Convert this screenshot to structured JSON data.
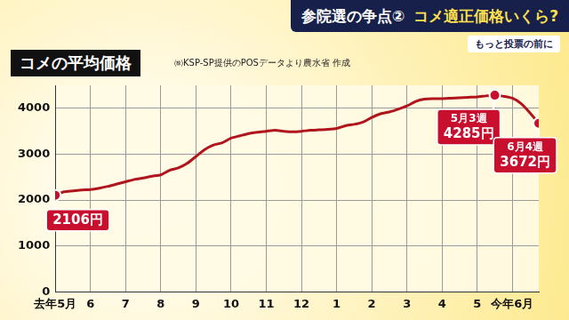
{
  "banner": {
    "topic": "参院選の争点②",
    "question": "コメ適正価格いくら?",
    "tagline": "もっと投票の前に"
  },
  "chart_data": {
    "type": "line",
    "title": "コメの平均価格",
    "subtitle": "㈱KSP-SP提供のPOSデータより農水省 作成",
    "categories": [
      "去年5月",
      null,
      null,
      null,
      "6",
      null,
      null,
      null,
      "7",
      null,
      null,
      null,
      "8",
      null,
      null,
      null,
      "9",
      null,
      null,
      null,
      "10",
      null,
      null,
      null,
      "11",
      null,
      null,
      null,
      "12",
      null,
      null,
      null,
      "1",
      null,
      null,
      null,
      "2",
      null,
      null,
      null,
      "3",
      null,
      null,
      null,
      "4",
      null,
      null,
      null,
      "5",
      null,
      null,
      null,
      "今年6月",
      null,
      null,
      null
    ],
    "values": [
      2106,
      2180,
      2200,
      2220,
      2230,
      2260,
      2300,
      2350,
      2400,
      2450,
      2480,
      2520,
      2550,
      2650,
      2700,
      2800,
      2950,
      3100,
      3200,
      3250,
      3350,
      3400,
      3450,
      3480,
      3500,
      3520,
      3500,
      3490,
      3500,
      3520,
      3530,
      3540,
      3560,
      3620,
      3650,
      3700,
      3800,
      3880,
      3920,
      3980,
      4050,
      4150,
      4200,
      4210,
      4210,
      4220,
      4230,
      4240,
      4250,
      4270,
      4285,
      4260,
      4220,
      4100,
      3900,
      3672
    ],
    "color": "#b0141c",
    "ylim": [
      0,
      4500
    ],
    "yticks": [
      0,
      1000,
      2000,
      3000,
      4000
    ],
    "grid": true,
    "annotations": [
      {
        "value": 2106,
        "label": "2106円"
      },
      {
        "value": 4285,
        "note": "5月3週",
        "label": "4285円"
      },
      {
        "value": 3672,
        "note": "6月4週",
        "label": "3672円"
      }
    ]
  }
}
